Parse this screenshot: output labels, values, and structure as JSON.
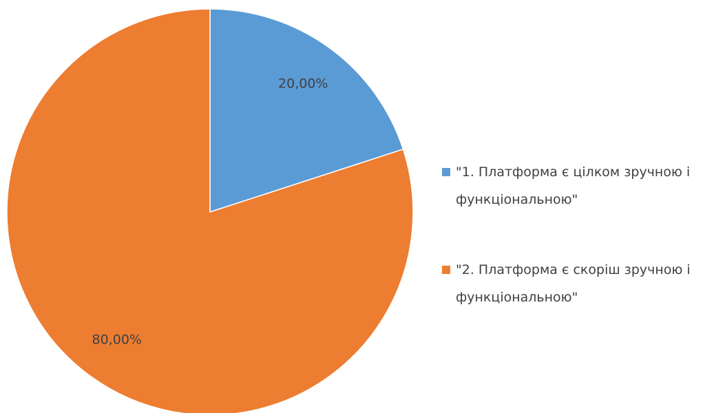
{
  "chart_data": {
    "type": "pie",
    "categories": [
      "\"1. Платформа є цілком зручною і функціональною\"",
      "\"2. Платформа є скоріш зручною і функціональною\""
    ],
    "values": [
      20,
      80
    ],
    "value_labels": [
      "20,00%",
      "80,00%"
    ],
    "colors": [
      "#5b9bd5",
      "#ed7d31"
    ],
    "legend": "right"
  }
}
